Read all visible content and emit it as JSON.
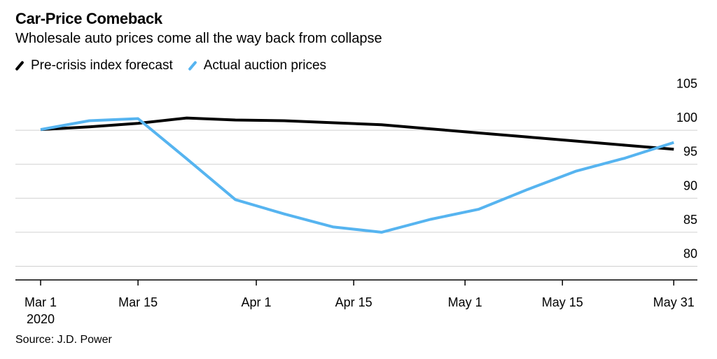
{
  "chart_data": {
    "type": "line",
    "title": "Car-Price Comeback",
    "subtitle": "Wholesale auto prices come all the way back from collapse",
    "source": "Source: J.D. Power",
    "xlabel": "",
    "ylabel": "",
    "ylim": [
      78,
      107
    ],
    "yticks": [
      80,
      85,
      90,
      95,
      100,
      105
    ],
    "xlim": [
      "2020-03-01",
      "2020-06-04"
    ],
    "xticks": [
      {
        "date": "2020-03-01",
        "label": "Mar 1",
        "sublabel": "2020"
      },
      {
        "date": "2020-03-15",
        "label": "Mar 15",
        "sublabel": ""
      },
      {
        "date": "2020-04-01",
        "label": "Apr 1",
        "sublabel": ""
      },
      {
        "date": "2020-04-15",
        "label": "Apr 15",
        "sublabel": ""
      },
      {
        "date": "2020-05-01",
        "label": "May 1",
        "sublabel": ""
      },
      {
        "date": "2020-05-15",
        "label": "May 15",
        "sublabel": ""
      },
      {
        "date": "2020-05-31",
        "label": "May 31",
        "sublabel": ""
      }
    ],
    "grid": true,
    "legend_position": "top-left",
    "series": [
      {
        "name": "Pre-crisis index forecast",
        "color": "#000000",
        "points": [
          {
            "x": "2020-03-01",
            "y": 100.1
          },
          {
            "x": "2020-03-08",
            "y": 100.5
          },
          {
            "x": "2020-03-15",
            "y": 101.0
          },
          {
            "x": "2020-03-22",
            "y": 101.8
          },
          {
            "x": "2020-03-29",
            "y": 101.5
          },
          {
            "x": "2020-04-05",
            "y": 101.4
          },
          {
            "x": "2020-04-12",
            "y": 101.1
          },
          {
            "x": "2020-04-19",
            "y": 100.8
          },
          {
            "x": "2020-04-26",
            "y": 100.2
          },
          {
            "x": "2020-05-03",
            "y": 99.6
          },
          {
            "x": "2020-05-10",
            "y": 99.0
          },
          {
            "x": "2020-05-17",
            "y": 98.4
          },
          {
            "x": "2020-05-24",
            "y": 97.8
          },
          {
            "x": "2020-05-31",
            "y": 97.2
          }
        ]
      },
      {
        "name": "Actual auction prices",
        "color": "#56b4f0",
        "points": [
          {
            "x": "2020-03-01",
            "y": 100.1
          },
          {
            "x": "2020-03-08",
            "y": 101.4
          },
          {
            "x": "2020-03-15",
            "y": 101.7
          },
          {
            "x": "2020-03-22",
            "y": 95.8
          },
          {
            "x": "2020-03-29",
            "y": 89.8
          },
          {
            "x": "2020-04-05",
            "y": 87.7
          },
          {
            "x": "2020-04-12",
            "y": 85.8
          },
          {
            "x": "2020-04-19",
            "y": 85.0
          },
          {
            "x": "2020-04-26",
            "y": 86.9
          },
          {
            "x": "2020-05-03",
            "y": 88.4
          },
          {
            "x": "2020-05-10",
            "y": 91.3
          },
          {
            "x": "2020-05-17",
            "y": 94.0
          },
          {
            "x": "2020-05-24",
            "y": 95.9
          },
          {
            "x": "2020-05-31",
            "y": 98.2
          }
        ]
      }
    ]
  }
}
